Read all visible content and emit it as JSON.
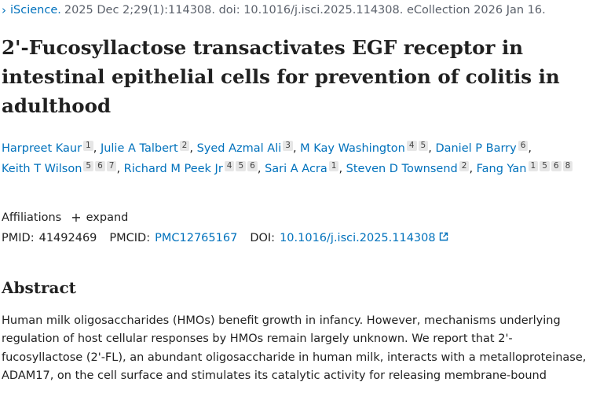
{
  "header": {
    "journal_link": "iScience.",
    "citation": "2025 Dec 2;29(1):114308. doi: 10.1016/j.isci.2025.114308. eCollection 2026 Jan 16."
  },
  "article": {
    "title": "2'-Fucosyllactose transactivates EGF receptor in intestinal epithelial cells for prevention of colitis in adulthood"
  },
  "authors": [
    {
      "name": "Harpreet Kaur",
      "affils": [
        "1"
      ]
    },
    {
      "name": "Julie A Talbert",
      "affils": [
        "2"
      ]
    },
    {
      "name": "Syed Azmal Ali",
      "affils": [
        "3"
      ]
    },
    {
      "name": "M Kay Washington",
      "affils": [
        "4",
        "5"
      ]
    },
    {
      "name": "Daniel P Barry",
      "affils": [
        "6"
      ]
    },
    {
      "name": "Keith T Wilson",
      "affils": [
        "5",
        "6",
        "7"
      ]
    },
    {
      "name": "Richard M Peek Jr",
      "affils": [
        "4",
        "5",
        "6"
      ]
    },
    {
      "name": "Sari A Acra",
      "affils": [
        "1"
      ]
    },
    {
      "name": "Steven D Townsend",
      "affils": [
        "2"
      ]
    },
    {
      "name": "Fang Yan",
      "affils": [
        "1",
        "5",
        "6",
        "8"
      ]
    }
  ],
  "affiliations": {
    "label": "Affiliations",
    "expand_label": "expand"
  },
  "identifiers": {
    "pmid_label": "PMID:",
    "pmid": "41492469",
    "pmcid_label": "PMCID:",
    "pmcid": "PMC12765167",
    "doi_label": "DOI:",
    "doi": "10.1016/j.isci.2025.114308"
  },
  "abstract": {
    "heading": "Abstract",
    "text": "Human milk oligosaccharides (HMOs) benefit growth in infancy. However, mechanisms underlying regulation of host cellular responses by HMOs remain largely unknown. We report that 2'-fucosyllactose (2'-FL), an abundant oligosaccharide in human milk, interacts with a metalloproteinase, ADAM17, on the cell surface and stimulates its catalytic activity for releasing membrane-bound"
  },
  "icons": {
    "breadcrumb": "chevron-right-icon",
    "expand": "plus-icon",
    "external": "external-link-icon"
  },
  "colors": {
    "link": "#0071bc",
    "text": "#212121",
    "muted": "#5b616b",
    "badge_bg": "#e6e6e6"
  }
}
